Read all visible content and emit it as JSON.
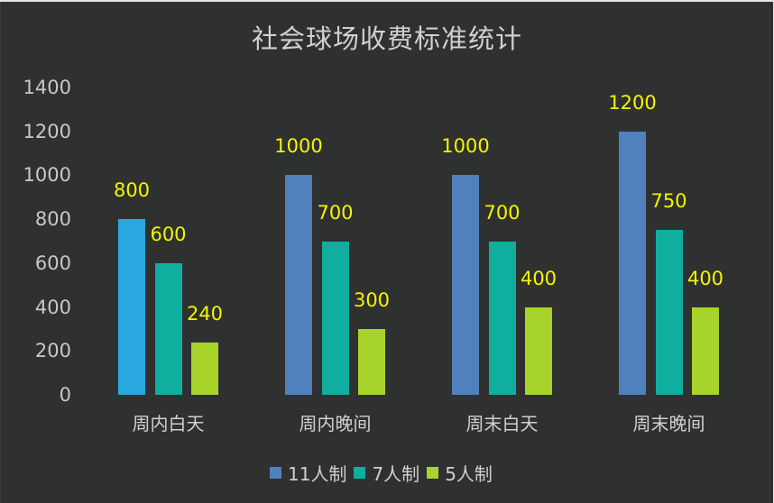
{
  "chart_data": {
    "type": "bar",
    "title": "社会球场收费标准统计",
    "xlabel": "",
    "ylabel": "",
    "ylim": [
      0,
      1400
    ],
    "yticks": [
      0,
      200,
      400,
      600,
      800,
      1000,
      1200,
      1400
    ],
    "grid": false,
    "legend_position": "bottom",
    "categories": [
      "周内白天",
      "周内晚间",
      "周末白天",
      "周末晚间"
    ],
    "series": [
      {
        "name": "11人制",
        "color": "#4f81bd",
        "values": [
          800,
          1000,
          1000,
          1200
        ]
      },
      {
        "name": "7人制",
        "color": "#0fae9e",
        "values": [
          600,
          700,
          700,
          750
        ]
      },
      {
        "name": "5人制",
        "color": "#a8d32a",
        "values": [
          240,
          300,
          400,
          400
        ]
      }
    ],
    "point_overrides": [
      {
        "series": 0,
        "category": 0,
        "color": "#29a8e0"
      }
    ],
    "data_label_color": "#f5f500"
  },
  "labels": {
    "title": "社会球场收费标准统计",
    "yticks": [
      "0",
      "200",
      "400",
      "600",
      "800",
      "1000",
      "1200",
      "1400"
    ],
    "categories": [
      "周内白天",
      "周内晚间",
      "周末白天",
      "周末晚间"
    ],
    "legend": [
      "11人制",
      "7人制",
      "5人制"
    ],
    "values": [
      [
        "800",
        "600",
        "240"
      ],
      [
        "1000",
        "700",
        "300"
      ],
      [
        "1000",
        "700",
        "400"
      ],
      [
        "1200",
        "750",
        "400"
      ]
    ]
  },
  "colors": {
    "background": "#2f3030",
    "s11": "#4f81bd",
    "s11_highlight": "#29a8e0",
    "s7": "#0fae9e",
    "s5": "#a8d32a",
    "text": "#d0d0d0",
    "data_label": "#f5f500"
  }
}
